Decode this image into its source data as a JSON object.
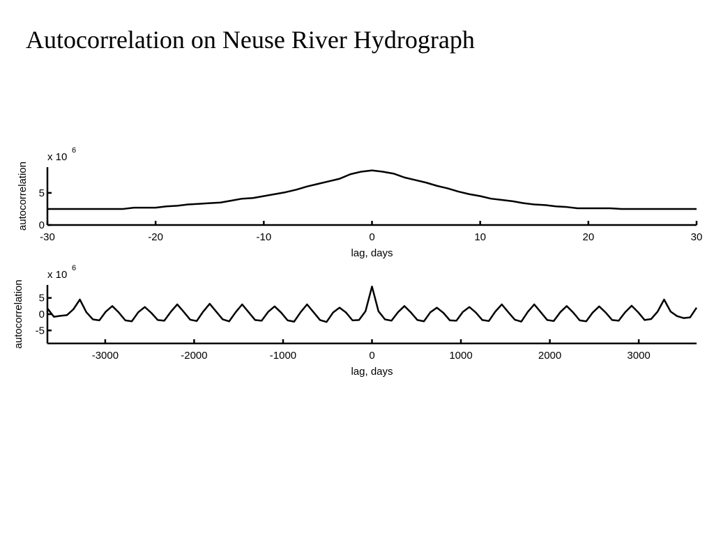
{
  "title": "Autocorrelation on Neuse River Hydrograph",
  "chart_data": [
    {
      "type": "line",
      "xlabel": "lag, days",
      "ylabel": "autocorrelation",
      "y_multiplier": "x 10",
      "y_exponent": 6,
      "x": [
        -30,
        -29,
        -28,
        -27,
        -26,
        -25,
        -24,
        -23,
        -22,
        -21,
        -20,
        -19,
        -18,
        -17,
        -16,
        -15,
        -14,
        -13,
        -12,
        -11,
        -10,
        -9,
        -8,
        -7,
        -6,
        -5,
        -4,
        -3,
        -2,
        -1,
        0,
        1,
        2,
        3,
        4,
        5,
        6,
        7,
        8,
        9,
        10,
        11,
        12,
        13,
        14,
        15,
        16,
        17,
        18,
        19,
        20,
        21,
        22,
        23,
        24,
        25,
        26,
        27,
        28,
        29,
        30
      ],
      "values": [
        2.5,
        2.5,
        2.5,
        2.5,
        2.5,
        2.5,
        2.5,
        2.5,
        2.7,
        2.7,
        2.7,
        2.9,
        3.0,
        3.2,
        3.3,
        3.4,
        3.5,
        3.8,
        4.1,
        4.2,
        4.5,
        4.8,
        5.1,
        5.5,
        6.0,
        6.4,
        6.8,
        7.2,
        7.9,
        8.3,
        8.5,
        8.3,
        8.0,
        7.4,
        7.0,
        6.6,
        6.1,
        5.7,
        5.2,
        4.8,
        4.5,
        4.1,
        3.9,
        3.7,
        3.4,
        3.2,
        3.1,
        2.9,
        2.8,
        2.6,
        2.6,
        2.6,
        2.6,
        2.5,
        2.5,
        2.5,
        2.5,
        2.5,
        2.5,
        2.5,
        2.5
      ],
      "color": "#000000",
      "xlim": [
        -30,
        30
      ],
      "xticks": [
        -30,
        -20,
        -10,
        0,
        10,
        20,
        30
      ],
      "ylim": [
        0,
        9
      ],
      "yticks": [
        0,
        5
      ]
    },
    {
      "type": "line",
      "xlabel": "lag, days",
      "ylabel": "autocorrelation",
      "y_multiplier": "x 10",
      "y_exponent": 6,
      "x": [
        -3650,
        -3577,
        -3504,
        -3431,
        -3358,
        -3285,
        -3212,
        -3139,
        -3066,
        -2993,
        -2920,
        -2847,
        -2774,
        -2701,
        -2628,
        -2555,
        -2482,
        -2409,
        -2336,
        -2263,
        -2190,
        -2117,
        -2044,
        -1971,
        -1898,
        -1825,
        -1752,
        -1679,
        -1606,
        -1533,
        -1460,
        -1387,
        -1314,
        -1241,
        -1168,
        -1095,
        -1022,
        -949,
        -876,
        -803,
        -730,
        -657,
        -584,
        -511,
        -438,
        -365,
        -292,
        -219,
        -146,
        -73,
        0,
        73,
        146,
        219,
        292,
        365,
        438,
        511,
        584,
        657,
        730,
        803,
        876,
        949,
        1022,
        1095,
        1168,
        1241,
        1314,
        1387,
        1460,
        1533,
        1606,
        1679,
        1752,
        1825,
        1898,
        1971,
        2044,
        2117,
        2190,
        2263,
        2336,
        2409,
        2482,
        2555,
        2628,
        2701,
        2774,
        2847,
        2920,
        2993,
        3066,
        3139,
        3212,
        3285,
        3358,
        3431,
        3504,
        3577,
        3650
      ],
      "values": [
        1.8,
        -0.8,
        -0.5,
        -0.3,
        1.5,
        4.5,
        0.6,
        -1.6,
        -1.9,
        0.8,
        2.5,
        0.5,
        -1.9,
        -2.2,
        0.6,
        2.2,
        0.4,
        -1.8,
        -2.0,
        0.7,
        3.0,
        0.7,
        -1.7,
        -2.1,
        0.8,
        3.2,
        0.8,
        -1.6,
        -2.2,
        0.6,
        3.0,
        0.6,
        -1.8,
        -2.0,
        0.7,
        2.4,
        0.5,
        -1.9,
        -2.3,
        0.6,
        3.0,
        0.6,
        -1.8,
        -2.4,
        0.5,
        2.0,
        0.5,
        -1.9,
        -1.8,
        0.9,
        8.5,
        0.9,
        -1.6,
        -2.0,
        0.6,
        2.5,
        0.5,
        -1.8,
        -2.2,
        0.6,
        2.0,
        0.4,
        -1.9,
        -2.0,
        0.7,
        2.2,
        0.5,
        -1.8,
        -2.1,
        0.8,
        3.0,
        0.6,
        -1.7,
        -2.3,
        0.7,
        3.0,
        0.6,
        -1.8,
        -2.1,
        0.6,
        2.5,
        0.5,
        -1.9,
        -2.2,
        0.5,
        2.4,
        0.5,
        -1.8,
        -2.0,
        0.6,
        2.6,
        0.6,
        -1.8,
        -1.5,
        0.8,
        4.5,
        0.8,
        -0.6,
        -1.2,
        -1.0,
        2.0
      ],
      "color": "#000000",
      "xlim": [
        -3650,
        3650
      ],
      "xticks": [
        -3000,
        -2000,
        -1000,
        0,
        1000,
        2000,
        3000
      ],
      "ylim": [
        -9,
        9
      ],
      "yticks": [
        -5,
        0,
        5
      ]
    }
  ]
}
